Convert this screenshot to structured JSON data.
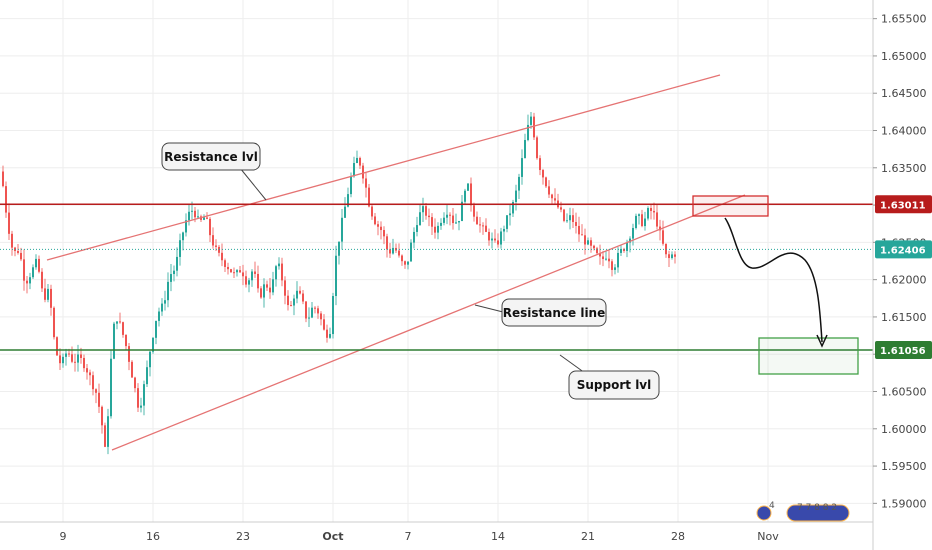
{
  "chart_data": {
    "type": "candlestick",
    "y_axis": {
      "min": 1.5875,
      "max": 1.6575,
      "ticks": [
        "1.65500",
        "1.65000",
        "1.64500",
        "1.64000",
        "1.63500",
        "1.63000",
        "1.62500",
        "1.62000",
        "1.61500",
        "1.61000",
        "1.60500",
        "1.60000",
        "1.59500",
        "1.59000"
      ],
      "tick_values": [
        1.655,
        1.65,
        1.645,
        1.64,
        1.635,
        1.63,
        1.625,
        1.62,
        1.615,
        1.61,
        1.605,
        1.6,
        1.595,
        1.59
      ]
    },
    "x_axis": {
      "ticks": [
        {
          "label": "9",
          "bold": false,
          "bar": 20
        },
        {
          "label": "16",
          "bold": false,
          "bar": 50
        },
        {
          "label": "23",
          "bold": false,
          "bar": 80
        },
        {
          "label": "Oct",
          "bold": true,
          "bar": 110
        },
        {
          "label": "7",
          "bold": false,
          "bar": 135
        },
        {
          "label": "14",
          "bold": false,
          "bar": 165
        },
        {
          "label": "21",
          "bold": false,
          "bar": 195
        },
        {
          "label": "28",
          "bold": false,
          "bar": 225
        },
        {
          "label": "Nov",
          "bold": false,
          "bar": 255
        }
      ]
    },
    "price_path": [
      [
        0,
        1.6345
      ],
      [
        2,
        1.628
      ],
      [
        4,
        1.6235
      ],
      [
        6,
        1.624
      ],
      [
        8,
        1.6195
      ],
      [
        10,
        1.621
      ],
      [
        12,
        1.6225
      ],
      [
        14,
        1.6175
      ],
      [
        16,
        1.6185
      ],
      [
        18,
        1.6105
      ],
      [
        20,
        1.6085
      ],
      [
        22,
        1.6105
      ],
      [
        24,
        1.609
      ],
      [
        26,
        1.6095
      ],
      [
        28,
        1.6085
      ],
      [
        30,
        1.6065
      ],
      [
        32,
        1.6045
      ],
      [
        34,
        1.5995
      ],
      [
        35,
        1.5955
      ],
      [
        36,
        1.6065
      ],
      [
        38,
        1.6155
      ],
      [
        40,
        1.6135
      ],
      [
        42,
        1.6105
      ],
      [
        44,
        1.6065
      ],
      [
        46,
        1.6025
      ],
      [
        48,
        1.6065
      ],
      [
        50,
        1.6115
      ],
      [
        52,
        1.6155
      ],
      [
        54,
        1.6165
      ],
      [
        56,
        1.6205
      ],
      [
        58,
        1.6215
      ],
      [
        60,
        1.6255
      ],
      [
        62,
        1.6285
      ],
      [
        64,
        1.6295
      ],
      [
        66,
        1.6275
      ],
      [
        68,
        1.6285
      ],
      [
        70,
        1.6255
      ],
      [
        72,
        1.6235
      ],
      [
        74,
        1.6225
      ],
      [
        76,
        1.6215
      ],
      [
        78,
        1.6205
      ],
      [
        80,
        1.6215
      ],
      [
        82,
        1.6195
      ],
      [
        84,
        1.6215
      ],
      [
        86,
        1.6175
      ],
      [
        88,
        1.6195
      ],
      [
        90,
        1.6185
      ],
      [
        92,
        1.6225
      ],
      [
        94,
        1.6195
      ],
      [
        96,
        1.6155
      ],
      [
        98,
        1.6185
      ],
      [
        100,
        1.6175
      ],
      [
        102,
        1.6145
      ],
      [
        104,
        1.6165
      ],
      [
        106,
        1.6155
      ],
      [
        108,
        1.6125
      ],
      [
        110,
        1.6135
      ],
      [
        111,
        1.6215
      ],
      [
        113,
        1.6265
      ],
      [
        115,
        1.6305
      ],
      [
        117,
        1.6345
      ],
      [
        119,
        1.6365
      ],
      [
        121,
        1.6335
      ],
      [
        123,
        1.6295
      ],
      [
        125,
        1.6275
      ],
      [
        127,
        1.6265
      ],
      [
        129,
        1.6235
      ],
      [
        131,
        1.6245
      ],
      [
        133,
        1.6225
      ],
      [
        135,
        1.6215
      ],
      [
        137,
        1.6255
      ],
      [
        139,
        1.6285
      ],
      [
        141,
        1.6295
      ],
      [
        143,
        1.6275
      ],
      [
        145,
        1.6265
      ],
      [
        147,
        1.6285
      ],
      [
        149,
        1.6295
      ],
      [
        151,
        1.6275
      ],
      [
        153,
        1.6285
      ],
      [
        155,
        1.6335
      ],
      [
        157,
        1.6295
      ],
      [
        159,
        1.6275
      ],
      [
        161,
        1.6265
      ],
      [
        163,
        1.6255
      ],
      [
        165,
        1.6245
      ],
      [
        167,
        1.6265
      ],
      [
        169,
        1.6285
      ],
      [
        171,
        1.6305
      ],
      [
        173,
        1.6345
      ],
      [
        175,
        1.6395
      ],
      [
        177,
        1.6425
      ],
      [
        178,
        1.6375
      ],
      [
        180,
        1.6345
      ],
      [
        182,
        1.6325
      ],
      [
        184,
        1.6305
      ],
      [
        186,
        1.6295
      ],
      [
        188,
        1.6275
      ],
      [
        190,
        1.6285
      ],
      [
        192,
        1.6265
      ],
      [
        194,
        1.6255
      ],
      [
        196,
        1.6245
      ],
      [
        198,
        1.6235
      ],
      [
        200,
        1.6225
      ],
      [
        202,
        1.6235
      ],
      [
        204,
        1.6215
      ],
      [
        206,
        1.6235
      ],
      [
        208,
        1.6245
      ],
      [
        210,
        1.6265
      ],
      [
        212,
        1.6285
      ],
      [
        214,
        1.6275
      ],
      [
        216,
        1.6295
      ],
      [
        218,
        1.6285
      ],
      [
        220,
        1.6255
      ],
      [
        222,
        1.6225
      ],
      [
        224,
        1.6235
      ]
    ],
    "horizontal_lines": [
      {
        "name": "resistance-level",
        "value": 1.63011,
        "label": "1.63011",
        "color": "#b71c1c"
      },
      {
        "name": "support-level",
        "value": 1.61056,
        "label": "1.61056",
        "color": "#2e7d32"
      },
      {
        "name": "current-price",
        "value": 1.62406,
        "label": "1.62406",
        "color": "#26a69a",
        "dotted": true
      }
    ],
    "trend_lines": [
      {
        "name": "channel-upper",
        "from": [
          0,
          1.6235
        ],
        "to": [
          240,
          1.6475
        ],
        "color": "#e57373"
      },
      {
        "name": "channel-lower",
        "from": [
          30,
          1.5985
        ],
        "to": [
          240,
          1.6315
        ],
        "color": "#e57373"
      }
    ],
    "annotations": [
      {
        "name": "resistance-lvl-callout",
        "text": "Resistance lvl"
      },
      {
        "name": "resistance-line-callout",
        "text": "Resistance line"
      },
      {
        "name": "support-lvl-callout",
        "text": "Support lvl"
      }
    ],
    "events": {
      "left": "4",
      "right": "7  7  8  8  2"
    }
  },
  "colors": {
    "up": "#26a69a",
    "down": "#ef5350",
    "grid": "#eeeeee",
    "zone_red": "#d32f2f",
    "zone_green": "#43a047"
  }
}
